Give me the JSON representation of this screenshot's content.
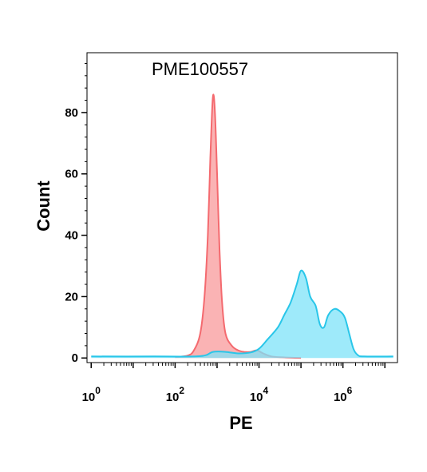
{
  "chart_data": {
    "type": "area",
    "title": "PME100557",
    "xlabel": "PE",
    "ylabel": "Count",
    "x_scale": "log",
    "x_range_log10": [
      -0.1,
      7.3
    ],
    "ylim": [
      -1.5,
      99.5
    ],
    "yticks": [
      0,
      20,
      40,
      60,
      80
    ],
    "xticks": [
      {
        "base": "10",
        "exp": "0",
        "pos": 0
      },
      {
        "base": "10",
        "exp": "2",
        "pos": 2
      },
      {
        "base": "10",
        "exp": "4",
        "pos": 4
      },
      {
        "base": "10",
        "exp": "6",
        "pos": 6
      }
    ],
    "grid": false,
    "series": [
      {
        "color": "#f46a6f",
        "fill": "#f89a9b",
        "points": [
          [
            2.0,
            0.3
          ],
          [
            2.3,
            0.8
          ],
          [
            2.45,
            2.5
          ],
          [
            2.6,
            8
          ],
          [
            2.7,
            20
          ],
          [
            2.78,
            40
          ],
          [
            2.84,
            65
          ],
          [
            2.9,
            85
          ],
          [
            2.95,
            80
          ],
          [
            3.0,
            60
          ],
          [
            3.06,
            35
          ],
          [
            3.12,
            18
          ],
          [
            3.2,
            8
          ],
          [
            3.35,
            4
          ],
          [
            3.5,
            2.5
          ],
          [
            3.65,
            2
          ],
          [
            3.8,
            2
          ],
          [
            3.95,
            2.5
          ],
          [
            4.1,
            1.5
          ],
          [
            4.3,
            0.5
          ],
          [
            4.6,
            0.2
          ],
          [
            5.0,
            0
          ]
        ]
      },
      {
        "color": "#29c6e9",
        "fill": "#7de3f8",
        "points": [
          [
            0.0,
            0.5
          ],
          [
            1.5,
            0.5
          ],
          [
            2.6,
            0.6
          ],
          [
            2.9,
            2
          ],
          [
            3.2,
            2
          ],
          [
            3.5,
            1.5
          ],
          [
            3.8,
            1.8
          ],
          [
            4.0,
            3
          ],
          [
            4.2,
            6
          ],
          [
            4.45,
            10
          ],
          [
            4.6,
            14
          ],
          [
            4.75,
            18
          ],
          [
            4.9,
            24
          ],
          [
            5.0,
            28.5
          ],
          [
            5.12,
            26
          ],
          [
            5.22,
            20
          ],
          [
            5.35,
            17
          ],
          [
            5.45,
            11
          ],
          [
            5.55,
            10
          ],
          [
            5.65,
            14
          ],
          [
            5.8,
            16
          ],
          [
            5.95,
            15
          ],
          [
            6.05,
            13
          ],
          [
            6.15,
            8
          ],
          [
            6.25,
            3
          ],
          [
            6.35,
            1
          ],
          [
            6.5,
            0.5
          ],
          [
            7.2,
            0.5
          ]
        ]
      }
    ]
  }
}
